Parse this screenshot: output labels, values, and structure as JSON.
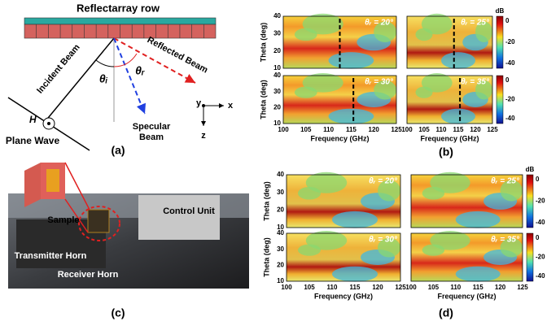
{
  "panel_a": {
    "title": "Reflectarray row",
    "incident": "Incident Beam",
    "reflected": "Reflected Beam",
    "specular_1": "Specular",
    "specular_2": "Beam",
    "theta_i": "θᵢ",
    "theta_r": "θᵣ",
    "field": "H",
    "plane_wave": "Plane Wave",
    "axis_y": "y",
    "axis_x": "x",
    "axis_z": "z",
    "caption": "(a)"
  },
  "panel_b": {
    "caption": "(b)",
    "x_label": "Frequency (GHz)",
    "y_label": "Theta (deg)",
    "x_ticks": [
      "100",
      "105",
      "110",
      "115",
      "120",
      "125"
    ],
    "y_ticks": [
      "10",
      "20",
      "30",
      "40"
    ],
    "colorbar_unit": "dB",
    "colorbar_ticks": [
      "0",
      "-20",
      "-40"
    ],
    "subplots": [
      "θᵣ = 20°",
      "θᵣ = 25°",
      "θᵣ = 30°",
      "θᵣ = 35°"
    ]
  },
  "panel_c": {
    "caption": "(c)",
    "labels": [
      "Sample",
      "Control Unit",
      "Transmitter Horn",
      "Receiver Horn"
    ]
  },
  "panel_d": {
    "caption": "(d)",
    "x_label": "Frequency (GHz)",
    "y_label": "Theta (deg)",
    "x_ticks": [
      "100",
      "105",
      "110",
      "115",
      "120",
      "125"
    ],
    "y_ticks": [
      "10",
      "20",
      "30",
      "40"
    ],
    "colorbar_unit": "dB",
    "colorbar_ticks": [
      "0",
      "-20",
      "-40"
    ],
    "subplots": [
      "θᵣ = 20°",
      "θᵣ = 25°",
      "θᵣ = 30°",
      "θᵣ = 35°"
    ]
  }
}
